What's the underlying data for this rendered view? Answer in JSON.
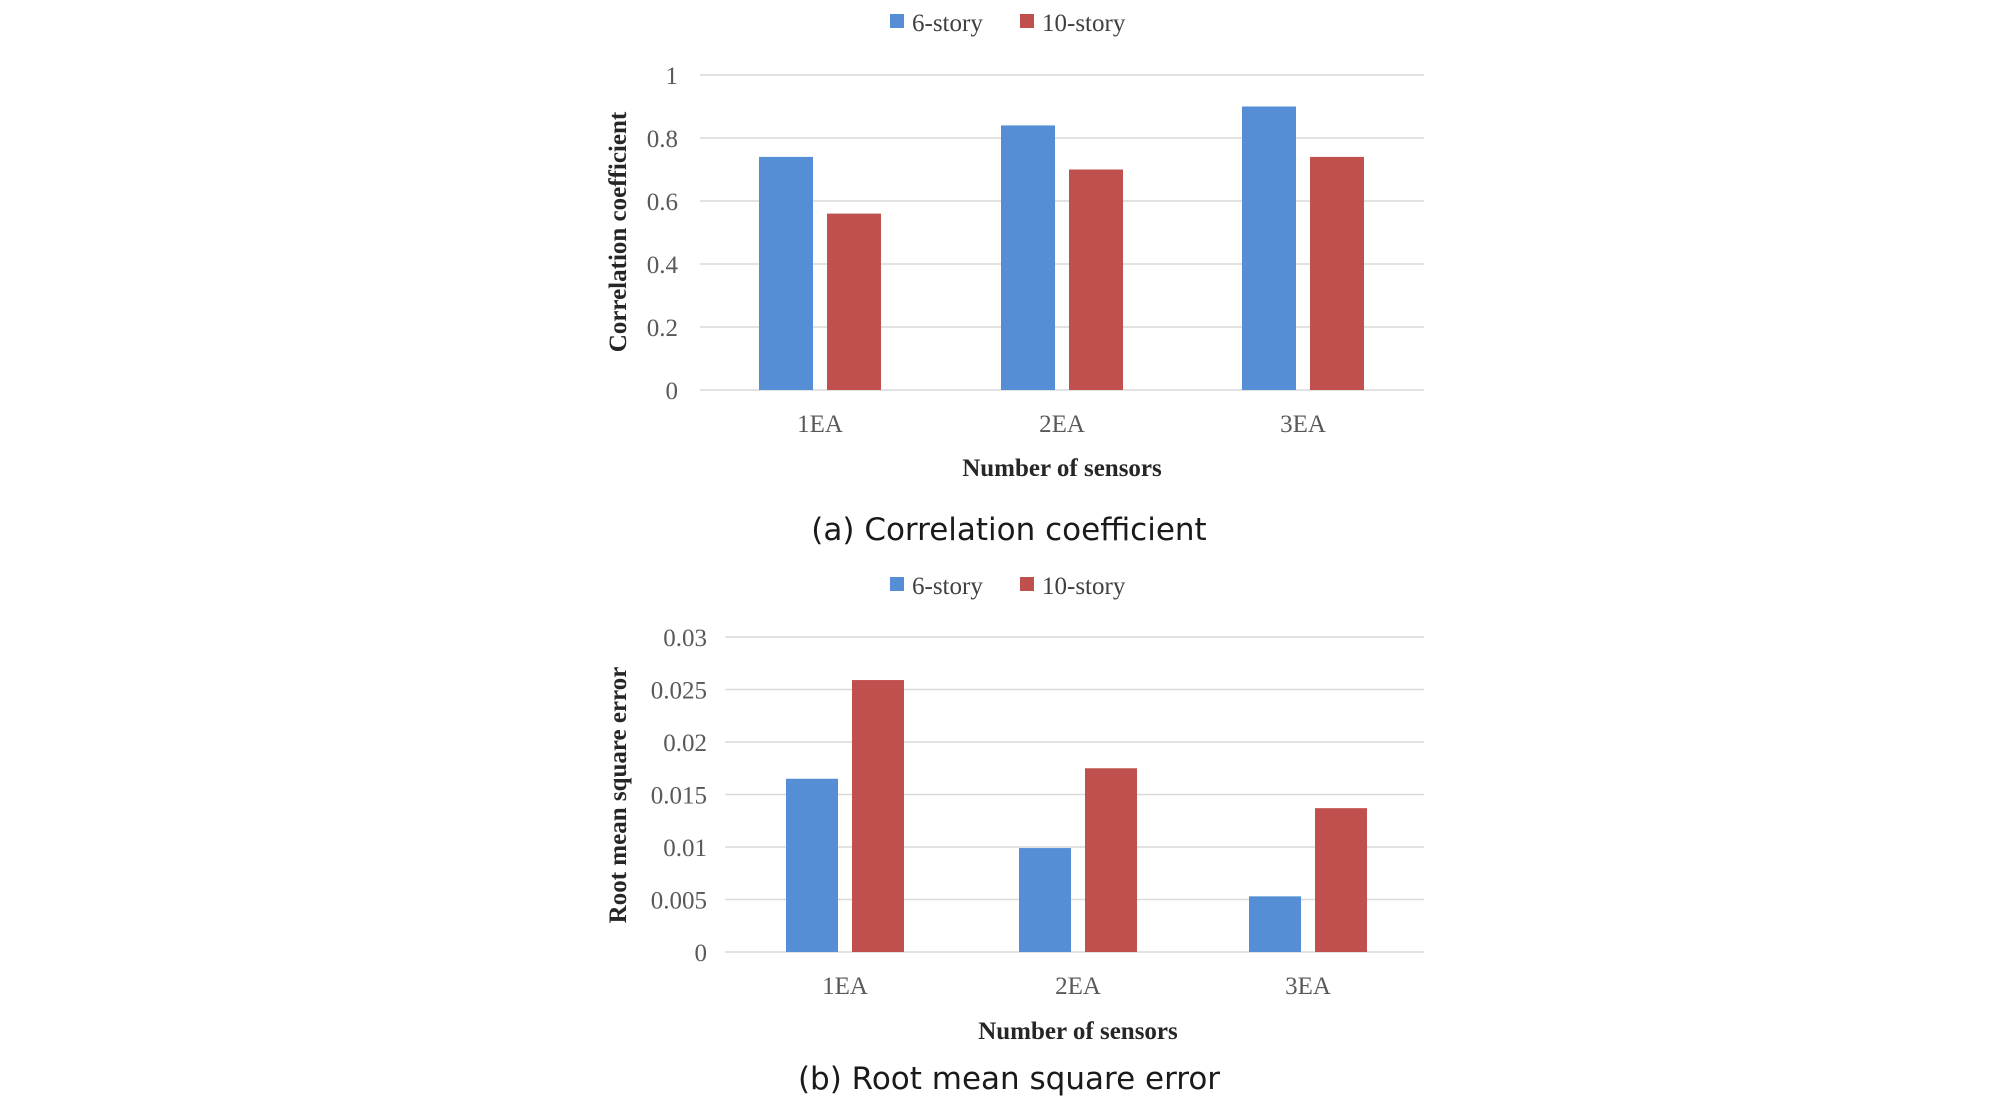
{
  "colors": {
    "series_6": "#558ed5",
    "series_10": "#c0504d"
  },
  "chart_data": [
    {
      "type": "bar",
      "categories": [
        "1EA",
        "2EA",
        "3EA"
      ],
      "series": [
        {
          "name": "6-story",
          "values": [
            0.74,
            0.84,
            0.9
          ]
        },
        {
          "name": "10-story",
          "values": [
            0.56,
            0.7,
            0.74
          ]
        }
      ],
      "yticks": [
        "0",
        "0.2",
        "0.4",
        "0.6",
        "0.8",
        "1"
      ],
      "ylim": [
        0,
        1
      ],
      "xlabel": "Number of sensors",
      "ylabel": "Correlation  coefficient",
      "caption": "(a) Correlation coefficient",
      "grid": true,
      "legend": "top-center"
    },
    {
      "type": "bar",
      "categories": [
        "1EA",
        "2EA",
        "3EA"
      ],
      "series": [
        {
          "name": "6-story",
          "values": [
            0.0165,
            0.0099,
            0.0053
          ]
        },
        {
          "name": "10-story",
          "values": [
            0.0259,
            0.0175,
            0.0137
          ]
        }
      ],
      "yticks": [
        "0",
        "0.005",
        "0.01",
        "0.015",
        "0.02",
        "0.025",
        "0.03"
      ],
      "ylim": [
        0,
        0.03
      ],
      "xlabel": "Number of sensors",
      "ylabel": "Root mean square error",
      "caption": "(b) Root mean square error",
      "grid": true,
      "legend": "top-center"
    }
  ]
}
